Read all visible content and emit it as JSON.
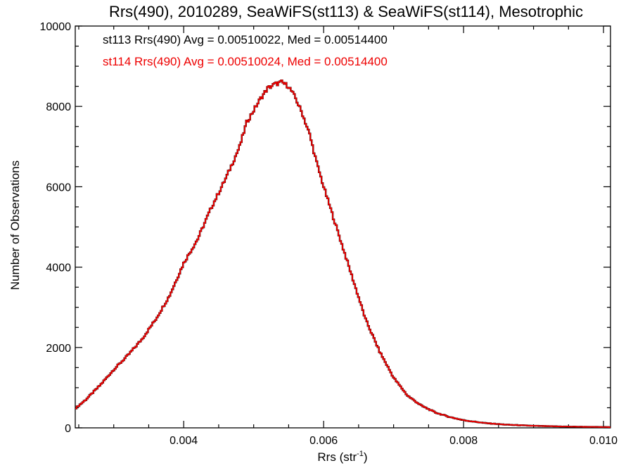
{
  "chart_data": {
    "type": "line",
    "title": "Rrs(490), 2010289, SeaWiFS(st113) & SeaWiFS(st114), Mesotrophic",
    "xlabel_main": "Rrs (str",
    "xlabel_sup": "-1",
    "xlabel_close": ")",
    "ylabel": "Number of Observations",
    "xlim": [
      0.00245,
      0.0101
    ],
    "ylim": [
      0,
      10000
    ],
    "x_ticks": [
      0.004,
      0.006,
      0.008,
      0.01
    ],
    "x_tick_labels": [
      "0.004",
      "0.006",
      "0.008",
      "0.010"
    ],
    "y_ticks": [
      0,
      2000,
      4000,
      6000,
      8000,
      10000
    ],
    "y_tick_labels": [
      "0",
      "2000",
      "4000",
      "6000",
      "8000",
      "10000"
    ],
    "grid": false,
    "annotations": [
      {
        "text": "st113 Rrs(490) Avg = 0.00510022, Med = 0.00514400",
        "color": "#000000"
      },
      {
        "text": "st114 Rrs(490) Avg = 0.00510024, Med = 0.00514400",
        "color": "#ee0000"
      }
    ],
    "series": [
      {
        "color": "#000000",
        "x": [
          0.00245,
          0.0026,
          0.0028,
          0.003,
          0.0032,
          0.0034,
          0.0036,
          0.0038,
          0.004,
          0.0042,
          0.0044,
          0.0046,
          0.0048,
          0.0049,
          0.005,
          0.0051,
          0.0052,
          0.0053,
          0.0054,
          0.0055,
          0.0056,
          0.0057,
          0.0058,
          0.0059,
          0.006,
          0.0062,
          0.0064,
          0.0066,
          0.0068,
          0.007,
          0.0072,
          0.0074,
          0.0076,
          0.0078,
          0.008,
          0.0083,
          0.0086,
          0.009,
          0.0095,
          0.0101
        ],
        "y": [
          480,
          700,
          1050,
          1450,
          1800,
          2200,
          2700,
          3300,
          4100,
          4700,
          5500,
          6200,
          7000,
          7600,
          7900,
          8200,
          8450,
          8550,
          8600,
          8500,
          8200,
          7800,
          7300,
          6600,
          6000,
          4900,
          3800,
          2700,
          1900,
          1250,
          800,
          550,
          380,
          270,
          190,
          120,
          80,
          50,
          30,
          18
        ]
      },
      {
        "color": "#ee0000",
        "x": [
          0.00245,
          0.0026,
          0.0028,
          0.003,
          0.0032,
          0.0034,
          0.0036,
          0.0038,
          0.004,
          0.0042,
          0.0044,
          0.0046,
          0.0048,
          0.0049,
          0.005,
          0.0051,
          0.0052,
          0.0053,
          0.0054,
          0.0055,
          0.0056,
          0.0057,
          0.0058,
          0.0059,
          0.006,
          0.0062,
          0.0064,
          0.0066,
          0.0068,
          0.007,
          0.0072,
          0.0074,
          0.0076,
          0.0078,
          0.008,
          0.0083,
          0.0086,
          0.009,
          0.0095,
          0.0101
        ],
        "y": [
          480,
          700,
          1050,
          1450,
          1800,
          2200,
          2700,
          3300,
          4100,
          4700,
          5500,
          6200,
          7000,
          7600,
          7900,
          8200,
          8450,
          8550,
          8600,
          8500,
          8200,
          7800,
          7300,
          6600,
          6000,
          4900,
          3800,
          2700,
          1900,
          1250,
          800,
          550,
          380,
          270,
          190,
          120,
          80,
          50,
          30,
          18
        ]
      }
    ]
  }
}
